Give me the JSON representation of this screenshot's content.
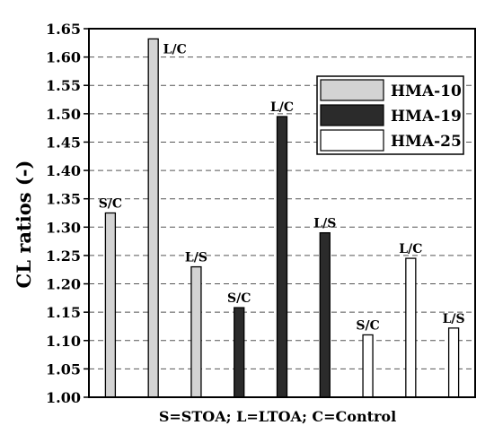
{
  "chart_data": {
    "type": "bar",
    "ylabel": "CL ratios (-)",
    "xlabel": "S=STOA; L=LTOA; C=Control",
    "ylim": [
      1.0,
      1.65
    ],
    "ytick_step": 0.05,
    "grid": "horizontal dashed",
    "legend_position": "top-right",
    "series": [
      {
        "name": "HMA-10",
        "color": "#d3d3d3",
        "bars": [
          {
            "label": "S/C",
            "value": 1.325
          },
          {
            "label": "L/C",
            "value": 1.632
          },
          {
            "label": "L/S",
            "value": 1.23
          }
        ]
      },
      {
        "name": "HMA-19",
        "color": "#2b2b2b",
        "bars": [
          {
            "label": "S/C",
            "value": 1.158
          },
          {
            "label": "L/C",
            "value": 1.495
          },
          {
            "label": "L/S",
            "value": 1.29
          }
        ]
      },
      {
        "name": "HMA-25",
        "color": "#ffffff",
        "bars": [
          {
            "label": "S/C",
            "value": 1.11
          },
          {
            "label": "L/C",
            "value": 1.245
          },
          {
            "label": "L/S",
            "value": 1.122
          }
        ]
      }
    ]
  }
}
